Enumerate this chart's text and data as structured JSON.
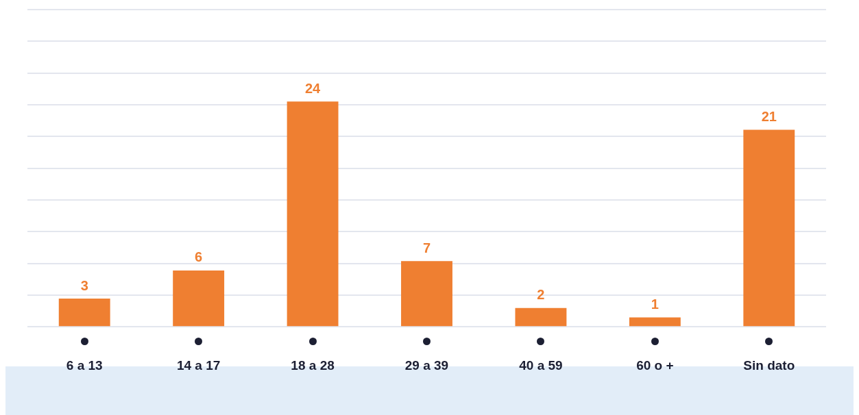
{
  "chart_data": {
    "type": "bar",
    "categories": [
      "6 a 13",
      "14 a 17",
      "18 a 28",
      "29 a 39",
      "40 a 59",
      "60 o +",
      "Sin dato"
    ],
    "values": [
      3,
      6,
      24,
      7,
      2,
      1,
      21
    ],
    "color": "#ef7f31",
    "ylim": [
      0,
      33.8
    ],
    "yticks": [
      {
        "value": 0,
        "label": null
      },
      {
        "value": 3.38,
        "label": null
      },
      {
        "value": 6.76,
        "label": null
      },
      {
        "value": 10.14,
        "label": null
      },
      {
        "value": 13.52,
        "label": null
      },
      {
        "value": 16.9,
        "label": null
      },
      {
        "value": 20.28,
        "label": null
      },
      {
        "value": 23.66,
        "label": null
      },
      {
        "value": 27.04,
        "label": null
      },
      {
        "value": 30.42,
        "label": null
      },
      {
        "value": 33.8,
        "label": null
      }
    ],
    "grid": "y",
    "legend": false,
    "tick_labels": "x",
    "data_labels": true
  }
}
